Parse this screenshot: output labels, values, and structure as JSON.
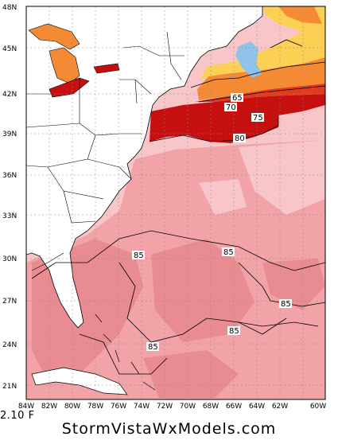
{
  "map": {
    "lat_labels": [
      "48N",
      "45N",
      "42N",
      "39N",
      "36N",
      "33N",
      "30N",
      "27N",
      "24N",
      "21N"
    ],
    "lon_labels": [
      "84W",
      "82W",
      "80W",
      "78W",
      "76W",
      "74W",
      "72W",
      "70W",
      "68W",
      "66W",
      "64W",
      "62W",
      "60W"
    ],
    "contour_labels": [
      "65",
      "70",
      "75",
      "80",
      "85",
      "85",
      "85",
      "85",
      "85"
    ],
    "colors": {
      "ocean_warm": "#f2a3a7",
      "ocean_warm_dark": "#e88c92",
      "ocean_light": "#f8c6c8",
      "land": "#ffffff",
      "cold_blue": "#8fc3ea",
      "orange": "#f58a34",
      "dark_red": "#c61010",
      "yellow": "#fbd054"
    }
  },
  "footer": {
    "left_text": "2.10 F",
    "brand": "StormVistaWxModels.com"
  }
}
